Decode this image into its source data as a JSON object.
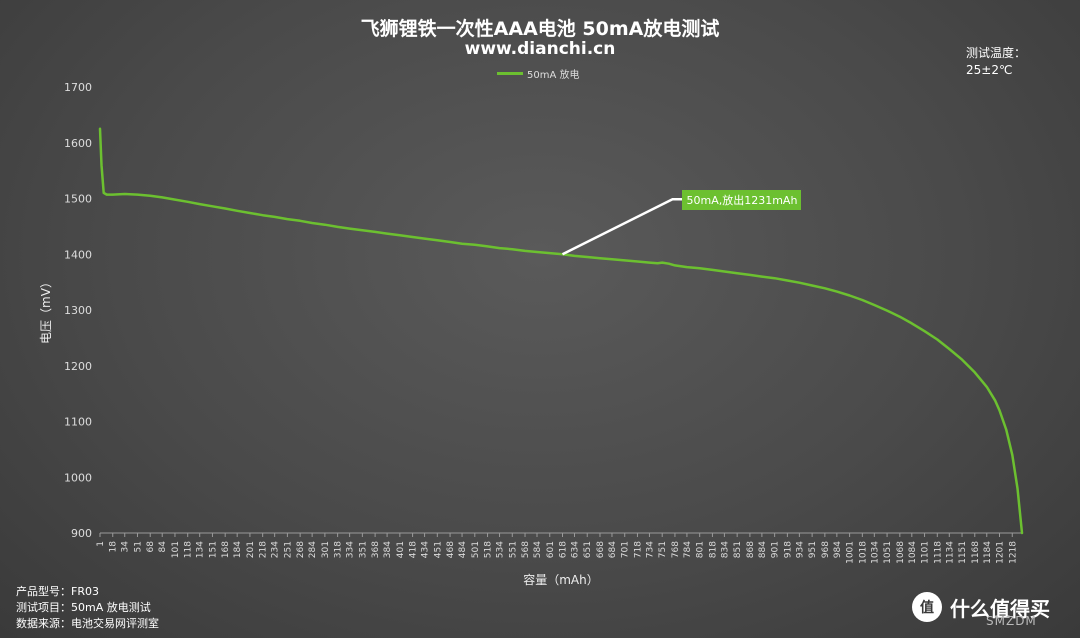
{
  "chart_data": {
    "type": "line",
    "title": "飞狮锂铁一次性AAA电池 50mA放电测试",
    "subtitle": "www.dianchi.cn",
    "xlabel": "容量（mAh）",
    "ylabel": "电压（mV）",
    "ylim": [
      900,
      1700
    ],
    "yticks": [
      900,
      1000,
      1100,
      1200,
      1300,
      1400,
      1500,
      1600,
      1700
    ],
    "xlim": [
      1,
      1231
    ],
    "xticks": [
      1,
      18,
      34,
      51,
      68,
      84,
      101,
      118,
      134,
      151,
      168,
      184,
      201,
      218,
      234,
      251,
      268,
      284,
      301,
      318,
      334,
      351,
      368,
      384,
      401,
      418,
      434,
      451,
      468,
      484,
      501,
      518,
      534,
      551,
      568,
      584,
      601,
      618,
      634,
      651,
      668,
      684,
      701,
      718,
      734,
      751,
      768,
      784,
      801,
      818,
      834,
      851,
      868,
      884,
      901,
      918,
      934,
      951,
      968,
      984,
      1001,
      1018,
      1034,
      1051,
      1068,
      1084,
      1101,
      1118,
      1134,
      1151,
      1168,
      1184,
      1201,
      1218
    ],
    "legend_position": "top-center",
    "grid": false,
    "series": [
      {
        "name": "50mA 放电",
        "color": "#6cc030",
        "x": [
          1,
          3,
          6,
          10,
          18,
          34,
          51,
          68,
          84,
          101,
          118,
          134,
          151,
          168,
          184,
          201,
          218,
          234,
          251,
          268,
          284,
          301,
          318,
          334,
          351,
          368,
          384,
          401,
          418,
          434,
          451,
          468,
          484,
          501,
          518,
          534,
          551,
          568,
          584,
          601,
          618,
          634,
          651,
          668,
          684,
          701,
          718,
          734,
          745,
          751,
          760,
          768,
          784,
          801,
          818,
          834,
          851,
          868,
          884,
          901,
          918,
          934,
          951,
          968,
          984,
          1001,
          1018,
          1034,
          1051,
          1068,
          1084,
          1101,
          1118,
          1134,
          1151,
          1168,
          1184,
          1195,
          1201,
          1210,
          1218,
          1225,
          1231
        ],
        "y": [
          1625,
          1560,
          1510,
          1507,
          1507,
          1508,
          1507,
          1505,
          1502,
          1498,
          1494,
          1490,
          1486,
          1482,
          1478,
          1474,
          1470,
          1467,
          1463,
          1460,
          1456,
          1453,
          1449,
          1446,
          1443,
          1440,
          1437,
          1434,
          1431,
          1428,
          1425,
          1422,
          1419,
          1417,
          1414,
          1411,
          1409,
          1406,
          1404,
          1402,
          1400,
          1397,
          1395,
          1393,
          1391,
          1389,
          1387,
          1385,
          1384,
          1385,
          1383,
          1380,
          1377,
          1375,
          1372,
          1369,
          1366,
          1363,
          1360,
          1357,
          1353,
          1349,
          1344,
          1339,
          1333,
          1326,
          1318,
          1309,
          1299,
          1288,
          1276,
          1262,
          1247,
          1230,
          1211,
          1188,
          1162,
          1138,
          1120,
          1085,
          1040,
          980,
          900
        ]
      }
    ],
    "annotations": [
      {
        "text": "50mA,放出1231mAh",
        "x": 618,
        "y": 1400
      }
    ]
  },
  "legend": {
    "label": "50mA 放电"
  },
  "temperature": {
    "label": "测试温度：",
    "value": "25±2℃"
  },
  "info": {
    "model": {
      "label": "产品型号：",
      "value": "FR03"
    },
    "test_item": {
      "label": "测试项目：",
      "value": "50mA 放电测试"
    },
    "source": {
      "label": "数据来源：",
      "value": "电池交易网评测室"
    }
  },
  "brand": {
    "logo_text": "值",
    "name": "什么值得买",
    "watermark": "SMZDM"
  }
}
